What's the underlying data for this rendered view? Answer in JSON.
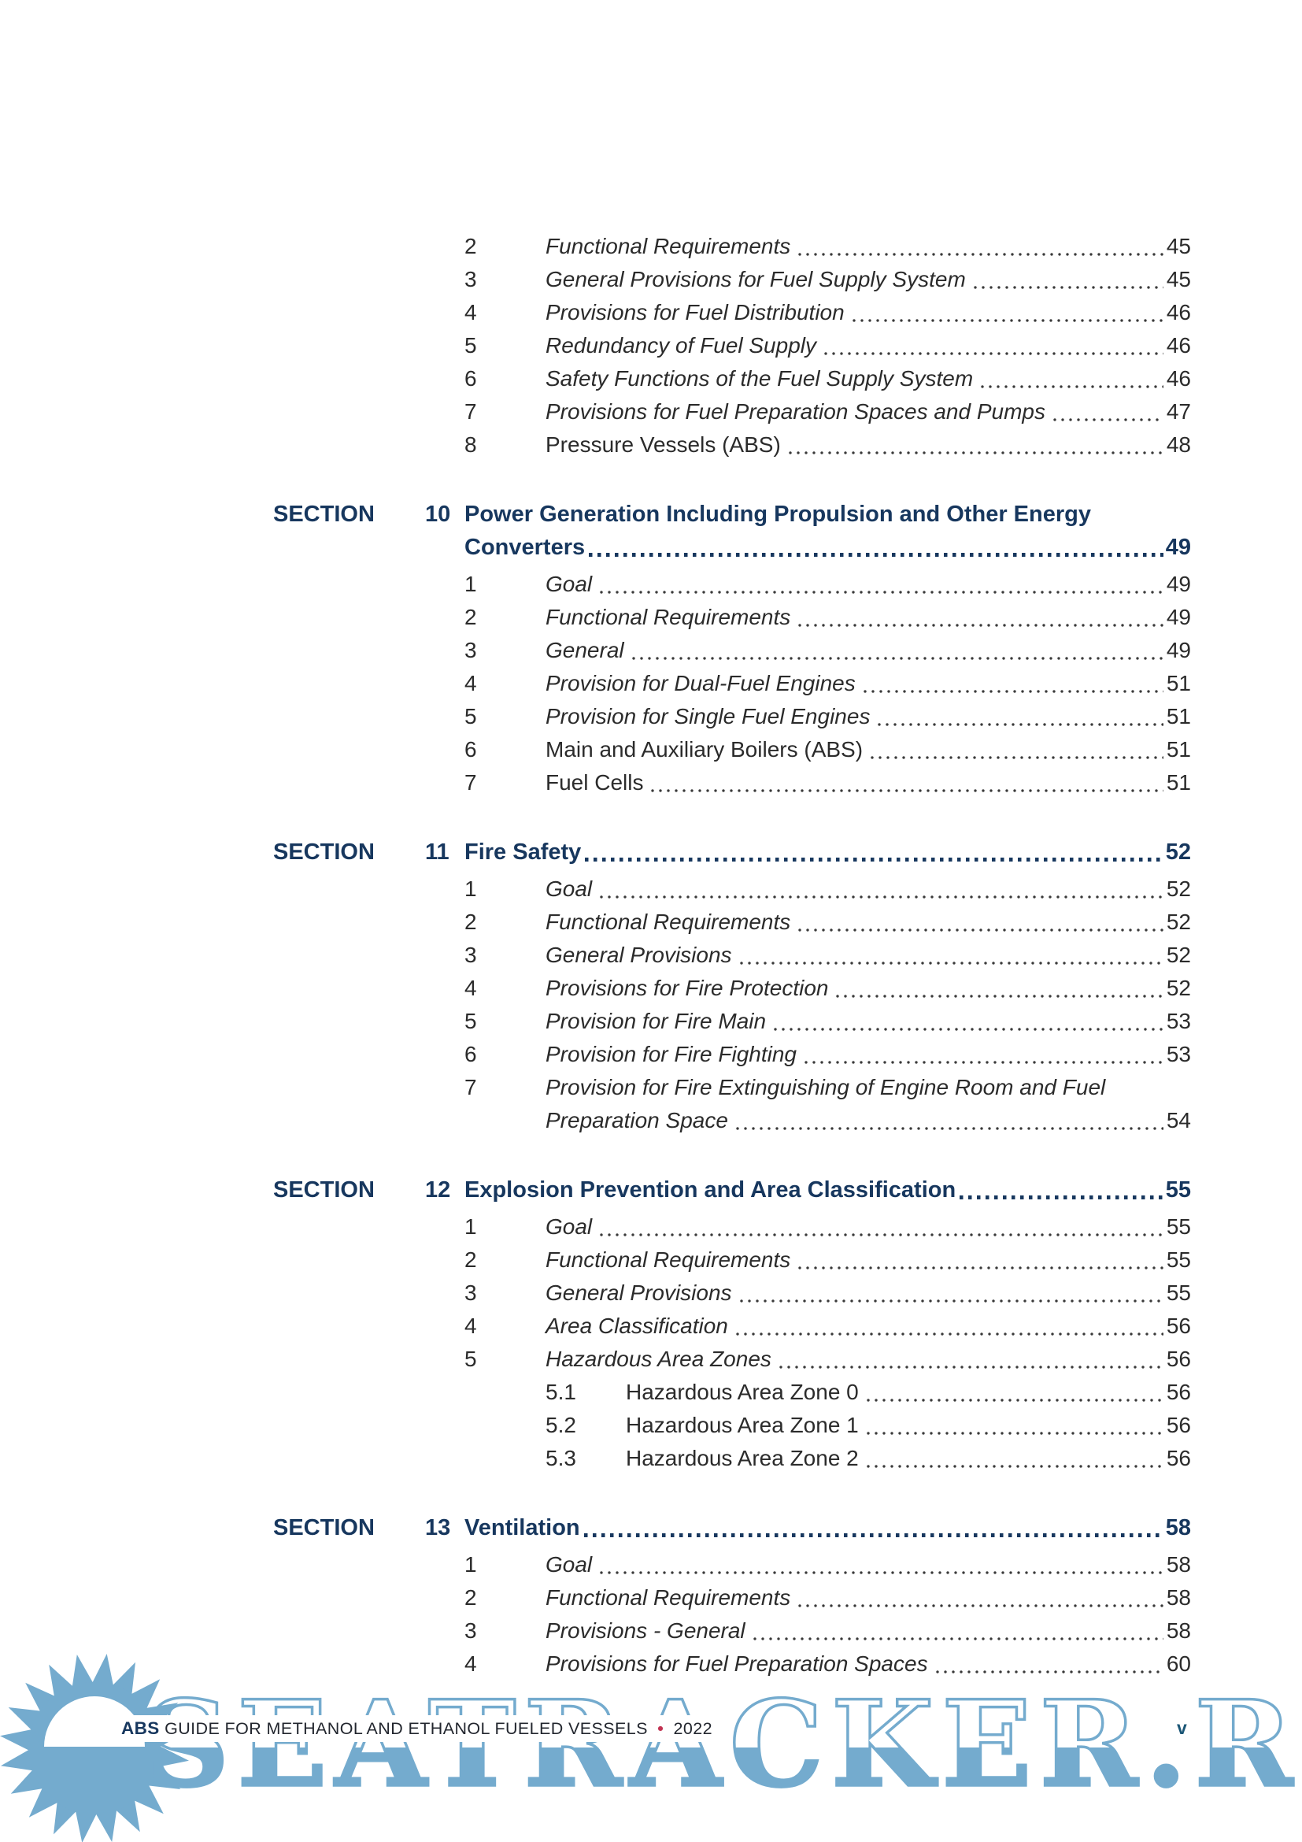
{
  "document": {
    "kind": "table-of-contents-page"
  },
  "toc": {
    "intro_items": [
      {
        "num": "2",
        "lines": [
          "Functional Requirements"
        ],
        "page": "45",
        "italic": true
      },
      {
        "num": "3",
        "lines": [
          "General Provisions for Fuel Supply System"
        ],
        "page": "45",
        "italic": true
      },
      {
        "num": "4",
        "lines": [
          "Provisions for Fuel Distribution"
        ],
        "page": "46",
        "italic": true
      },
      {
        "num": "5",
        "lines": [
          "Redundancy of Fuel Supply"
        ],
        "page": "46",
        "italic": true
      },
      {
        "num": "6",
        "lines": [
          "Safety Functions of the Fuel Supply System"
        ],
        "page": "46",
        "italic": true
      },
      {
        "num": "7",
        "lines": [
          "Provisions for Fuel Preparation Spaces and Pumps"
        ],
        "page": "47",
        "italic": true
      },
      {
        "num": "8",
        "lines": [
          "Pressure Vessels (ABS)"
        ],
        "page": "48",
        "italic": false
      }
    ],
    "sections": [
      {
        "label": "SECTION",
        "number": "10",
        "title_lines": [
          "Power Generation Including Propulsion and Other Energy",
          "Converters"
        ],
        "page": "49",
        "items": [
          {
            "num": "1",
            "lines": [
              "Goal"
            ],
            "page": "49",
            "italic": true
          },
          {
            "num": "2",
            "lines": [
              "Functional Requirements"
            ],
            "page": "49",
            "italic": true
          },
          {
            "num": "3",
            "lines": [
              "General"
            ],
            "page": "49",
            "italic": true
          },
          {
            "num": "4",
            "lines": [
              "Provision for Dual-Fuel Engines"
            ],
            "page": "51",
            "italic": true
          },
          {
            "num": "5",
            "lines": [
              "Provision for Single Fuel Engines"
            ],
            "page": "51",
            "italic": true
          },
          {
            "num": "6",
            "lines": [
              "Main and Auxiliary Boilers (ABS)"
            ],
            "page": "51",
            "italic": false
          },
          {
            "num": "7",
            "lines": [
              "Fuel Cells"
            ],
            "page": "51",
            "italic": false
          }
        ]
      },
      {
        "label": "SECTION",
        "number": "11",
        "title_lines": [
          "Fire Safety"
        ],
        "page": "52",
        "items": [
          {
            "num": "1",
            "lines": [
              "Goal"
            ],
            "page": "52",
            "italic": true
          },
          {
            "num": "2",
            "lines": [
              "Functional Requirements"
            ],
            "page": "52",
            "italic": true
          },
          {
            "num": "3",
            "lines": [
              "General Provisions"
            ],
            "page": "52",
            "italic": true
          },
          {
            "num": "4",
            "lines": [
              "Provisions for Fire Protection"
            ],
            "page": "52",
            "italic": true
          },
          {
            "num": "5",
            "lines": [
              "Provision for Fire Main"
            ],
            "page": "53",
            "italic": true
          },
          {
            "num": "6",
            "lines": [
              "Provision for Fire Fighting"
            ],
            "page": "53",
            "italic": true
          },
          {
            "num": "7",
            "lines": [
              "Provision for Fire Extinguishing of Engine Room and Fuel",
              "Preparation Space"
            ],
            "page": "54",
            "italic": true
          }
        ]
      },
      {
        "label": "SECTION",
        "number": "12",
        "title_lines": [
          "Explosion Prevention and Area Classification"
        ],
        "page": "55",
        "items": [
          {
            "num": "1",
            "lines": [
              "Goal"
            ],
            "page": "55",
            "italic": true
          },
          {
            "num": "2",
            "lines": [
              "Functional Requirements"
            ],
            "page": "55",
            "italic": true
          },
          {
            "num": "3",
            "lines": [
              "General Provisions"
            ],
            "page": "55",
            "italic": true
          },
          {
            "num": "4",
            "lines": [
              "Area Classification"
            ],
            "page": "56",
            "italic": true
          },
          {
            "num": "5",
            "lines": [
              "Hazardous Area Zones"
            ],
            "page": "56",
            "italic": true
          },
          {
            "num": "5.1",
            "lines": [
              "Hazardous Area Zone 0"
            ],
            "page": "56",
            "italic": false,
            "sub": true
          },
          {
            "num": "5.2",
            "lines": [
              "Hazardous Area Zone 1"
            ],
            "page": "56",
            "italic": false,
            "sub": true
          },
          {
            "num": "5.3",
            "lines": [
              "Hazardous Area Zone 2"
            ],
            "page": "56",
            "italic": false,
            "sub": true
          }
        ]
      },
      {
        "label": "SECTION",
        "number": "13",
        "title_lines": [
          "Ventilation"
        ],
        "page": "58",
        "items": [
          {
            "num": "1",
            "lines": [
              "Goal"
            ],
            "page": "58",
            "italic": true
          },
          {
            "num": "2",
            "lines": [
              "Functional Requirements"
            ],
            "page": "58",
            "italic": true
          },
          {
            "num": "3",
            "lines": [
              "Provisions - General"
            ],
            "page": "58",
            "italic": true
          },
          {
            "num": "4",
            "lines": [
              "Provisions for Fuel Preparation Spaces"
            ],
            "page": "60",
            "italic": true
          }
        ]
      }
    ]
  },
  "footer": {
    "brand": "ABS",
    "title": "GUIDE FOR METHANOL AND ETHANOL FUELED VESSELS",
    "separator": "•",
    "year": "2022",
    "page_number": "v"
  },
  "watermark": {
    "text": "SEATRACKER.RU",
    "color": "#74abce",
    "sun_icon": "rising-sun"
  },
  "colors": {
    "heading_navy": "#17375e",
    "body_text": "#2b2b2b",
    "watermark_blue": "#74abce",
    "footer_bullet_red": "#c23352",
    "footer_page_teal": "#1b5676",
    "page_background": "#ffffff"
  }
}
